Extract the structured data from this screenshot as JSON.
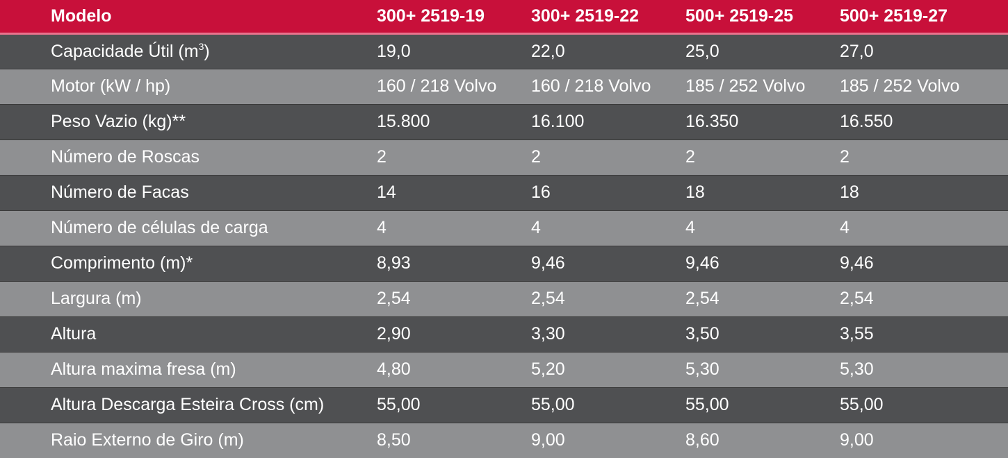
{
  "header": {
    "label": "Modelo",
    "models": [
      "300+ 2519-19",
      "300+ 2519-22",
      "500+ 2519-25",
      "500+ 2519-27"
    ]
  },
  "rows": [
    {
      "label": "Capacidade Útil (m",
      "label_sup": "3",
      "label_after": ")",
      "values": [
        "19,0",
        "22,0",
        "25,0",
        "27,0"
      ]
    },
    {
      "label": "Motor (kW / hp)",
      "values": [
        "160 / 218 Volvo",
        "160 / 218 Volvo",
        "185 / 252 Volvo",
        "185 / 252 Volvo"
      ]
    },
    {
      "label": "Peso Vazio (kg)**",
      "values": [
        "15.800",
        "16.100",
        "16.350",
        "16.550"
      ]
    },
    {
      "label": "Número de Roscas",
      "values": [
        "2",
        "2",
        "2",
        "2"
      ]
    },
    {
      "label": "Número de Facas",
      "values": [
        "14",
        "16",
        "18",
        "18"
      ]
    },
    {
      "label": "Número de células de carga",
      "values": [
        "4",
        "4",
        "4",
        "4"
      ]
    },
    {
      "label": "Comprimento (m)*",
      "values": [
        "8,93",
        "9,46",
        "9,46",
        "9,46"
      ]
    },
    {
      "label": "Largura (m)",
      "values": [
        "2,54",
        "2,54",
        "2,54",
        "2,54"
      ]
    },
    {
      "label": "Altura",
      "values": [
        "2,90",
        "3,30",
        "3,50",
        "3,55"
      ]
    },
    {
      "label": "Altura maxima fresa (m)",
      "values": [
        "4,80",
        "5,20",
        "5,30",
        "5,30"
      ]
    },
    {
      "label": "Altura Descarga Esteira Cross (cm)",
      "values": [
        "55,00",
        "55,00",
        "55,00",
        "55,00"
      ]
    },
    {
      "label": "Raio Externo de Giro (m)",
      "values": [
        "8,50",
        "9,00",
        "8,60",
        "9,00"
      ]
    }
  ],
  "colors": {
    "header_bg": "#c8103a",
    "row_dark": "#4f5052",
    "row_light": "#8f9092",
    "text": "#ffffff"
  }
}
